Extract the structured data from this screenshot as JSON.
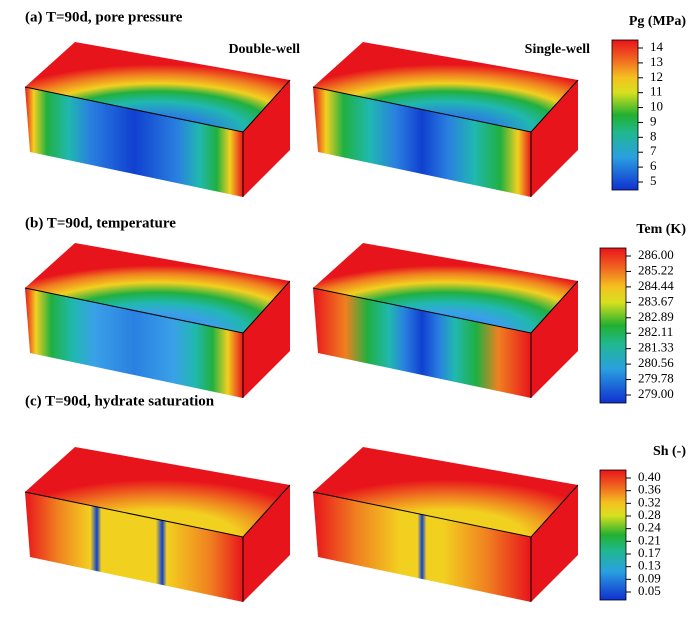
{
  "panels": [
    {
      "title": "(a) T=90d, pore pressure",
      "labels": [
        "Double-well",
        "Single-well"
      ],
      "colorbar": {
        "title": "Pg (MPa)",
        "ticks": [
          "14",
          "13",
          "12",
          "11",
          "10",
          "9",
          "8",
          "7",
          "6",
          "5"
        ]
      }
    },
    {
      "title": "(b) T=90d, temperature",
      "colorbar": {
        "title": "Tem (K)",
        "ticks": [
          "286.00",
          "285.22",
          "284.44",
          "283.67",
          "282.89",
          "282.11",
          "281.33",
          "280.56",
          "279.78",
          "279.00"
        ]
      }
    },
    {
      "title": "(c) T=90d, hydrate saturation",
      "colorbar": {
        "title": "Sh (-)",
        "ticks": [
          "0.40",
          "0.36",
          "0.32",
          "0.28",
          "0.24",
          "0.21",
          "0.17",
          "0.13",
          "0.09",
          "0.05"
        ]
      }
    }
  ]
}
